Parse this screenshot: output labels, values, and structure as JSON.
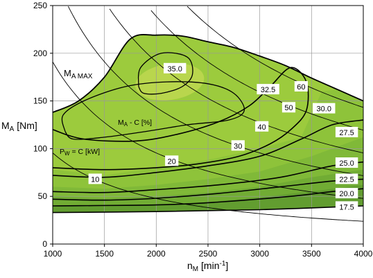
{
  "chart_data": {
    "type": "contour",
    "xlabel_main": "n",
    "xlabel_sub": "M",
    "xlabel_unit": " [min",
    "xlabel_sup": "-1",
    "xlabel_close": "]",
    "ylabel_main": "M",
    "ylabel_sub": "A",
    "ylabel_unit": " [Nm]",
    "xlim": [
      1000,
      4000
    ],
    "ylim": [
      0,
      250
    ],
    "xticks": [
      1000,
      1500,
      2000,
      2500,
      3000,
      3500,
      4000
    ],
    "yticks": [
      0,
      50,
      100,
      150,
      200,
      250
    ],
    "grid": true,
    "max_torque_curve": {
      "name_main": "M",
      "name_sub": "A MAX",
      "x": [
        1000,
        1250,
        1500,
        1750,
        2000,
        2250,
        2500,
        2750,
        3000,
        3250,
        3500,
        3750,
        4000
      ],
      "y": [
        138,
        150,
        175,
        215,
        219,
        218,
        212,
        206,
        197,
        187,
        174,
        162,
        150
      ]
    },
    "efficiency_contours": {
      "name_main": "M",
      "name_sub": "A",
      "name_rest": " - C [%]",
      "levels": [
        "17.5",
        "20.0",
        "22.5",
        "25.0",
        "27.5",
        "30.0",
        "32.5",
        "35.0"
      ]
    },
    "power_hyperbolas": {
      "name_main": "P",
      "name_sub": "W",
      "name_rest": " = C [kW]",
      "kw": [
        10,
        20,
        30,
        40,
        50,
        60
      ],
      "labels": [
        "10",
        "20",
        "30",
        "40",
        "50",
        "60"
      ]
    },
    "fill_colors": [
      "#b9d64d",
      "#9ccb3d",
      "#8cc23a",
      "#7eb738",
      "#6fa934",
      "#5f9a30"
    ]
  }
}
